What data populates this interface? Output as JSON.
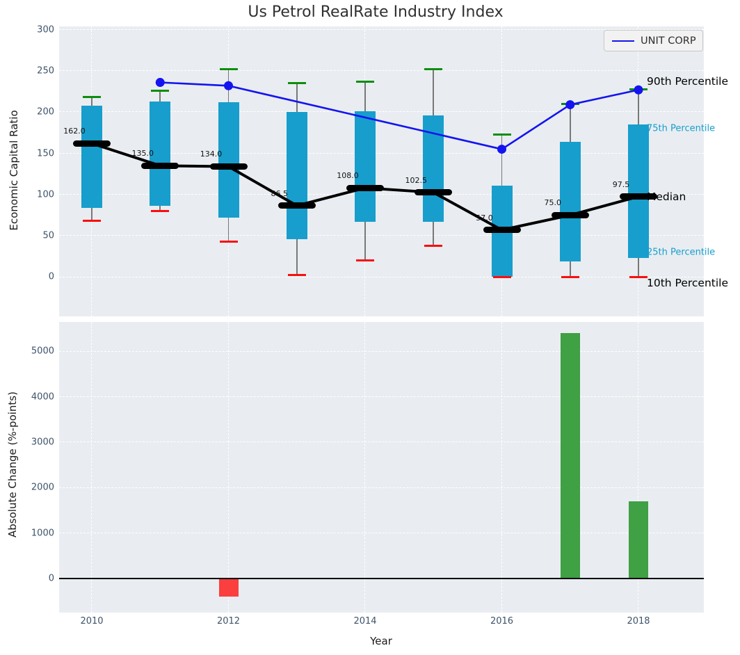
{
  "chart_data": {
    "type": "combo",
    "title": "Us Petrol RealRate Industry Index",
    "top_panel": {
      "type": "boxplot",
      "ylabel": "Economic Capital Ratio",
      "yticks": [
        0,
        50,
        100,
        150,
        200,
        250,
        300
      ],
      "ylim": [
        -48,
        304
      ],
      "grid": true,
      "boxes": [
        {
          "year": 2010,
          "p10": 68,
          "p25": 84,
          "median": 162.0,
          "median_label": "162.0",
          "p75": 208,
          "p90": 218
        },
        {
          "year": 2011,
          "p10": 80,
          "p25": 86,
          "median": 135.0,
          "median_label": "135.0",
          "p75": 213,
          "p90": 226
        },
        {
          "year": 2012,
          "p10": 43,
          "p25": 72,
          "median": 134.0,
          "median_label": "134.0",
          "p75": 212,
          "p90": 252
        },
        {
          "year": 2013,
          "p10": 2,
          "p25": 46,
          "median": 86.5,
          "median_label": "86.5",
          "p75": 200,
          "p90": 235
        },
        {
          "year": 2014,
          "p10": 20,
          "p25": 67,
          "median": 108.0,
          "median_label": "108.0",
          "p75": 201,
          "p90": 237
        },
        {
          "year": 2015,
          "p10": 38,
          "p25": 67,
          "median": 102.5,
          "median_label": "102.5",
          "p75": 196,
          "p90": 252
        },
        {
          "year": 2016,
          "p10": 0,
          "p25": 0,
          "median": 57.0,
          "median_label": "57.0",
          "p75": 111,
          "p90": 173
        },
        {
          "year": 2017,
          "p10": 0,
          "p25": 19,
          "median": 75.0,
          "median_label": "75.0",
          "p75": 164,
          "p90": 210
        },
        {
          "year": 2018,
          "p10": 0,
          "p25": 23,
          "median": 97.5,
          "median_label": "97.5",
          "p75": 185,
          "p90": 228
        }
      ],
      "company_line": {
        "name": "UNIT CORP",
        "points": [
          {
            "year": 2011,
            "value": 236
          },
          {
            "year": 2012,
            "value": 232
          },
          {
            "year": 2016,
            "value": 155
          },
          {
            "year": 2017,
            "value": 209
          },
          {
            "year": 2018,
            "value": 227
          }
        ]
      },
      "legend": {
        "label": "UNIT CORP",
        "position": "upper right"
      },
      "percentile_labels": [
        {
          "text": "90th Percentile",
          "at_value": 237,
          "color": "#000000",
          "size": 15.5
        },
        {
          "text": "75th Percentile",
          "at_value": 180,
          "color": "#179ecd",
          "size": 13
        },
        {
          "text": "Median",
          "at_value": 97.5,
          "color": "#000000",
          "size": 15.5
        },
        {
          "text": "25th Percentile",
          "at_value": 30,
          "color": "#179ecd",
          "size": 13
        },
        {
          "text": "10th Percentile",
          "at_value": -7,
          "color": "#000000",
          "size": 15.5
        }
      ]
    },
    "bottom_panel": {
      "type": "bar",
      "ylabel": "Absolute Change (%-points)",
      "xlabel": "Year",
      "yticks": [
        0,
        1000,
        2000,
        3000,
        4000,
        5000
      ],
      "xticks": [
        2010,
        2012,
        2014,
        2016,
        2018
      ],
      "ylim": [
        -720,
        5650
      ],
      "grid": true,
      "bars": [
        {
          "year": 2012,
          "value": -400
        },
        {
          "year": 2017,
          "value": 5400
        },
        {
          "year": 2018,
          "value": 1700
        }
      ]
    },
    "colors": {
      "box": "#179ecd",
      "whisker": "#787878",
      "cap_top": "#0c8e0c",
      "cap_bottom": "#f80f0f",
      "median": "#000000",
      "company_line": "#1414f0",
      "bar_positive": "#3fa044",
      "bar_negative": "#fb3e3e",
      "axes_background": "#e9edf1",
      "gridline": "#ffffff",
      "tick_label": "#3e5369",
      "title": "#303030",
      "zero_line": "#000000"
    }
  }
}
